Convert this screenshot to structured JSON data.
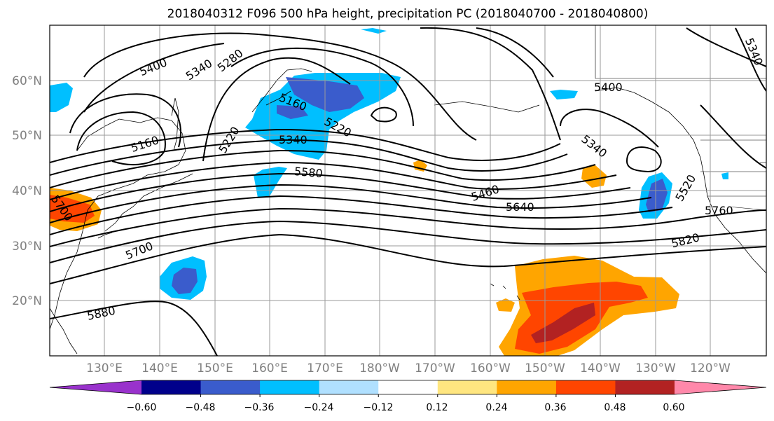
{
  "title": "2018040312 F096 500 hPa height, precipitation PC (2018040700 - 2018040800)",
  "map": {
    "lat_labels": [
      "60°N",
      "50°N",
      "40°N",
      "30°N",
      "20°N"
    ],
    "lon_labels": [
      "130°E",
      "140°E",
      "150°E",
      "160°E",
      "170°E",
      "180°W",
      "170°W",
      "160°W",
      "150°W",
      "140°W",
      "130°W",
      "120°W"
    ],
    "contour_labels": [
      "5400",
      "5340",
      "5280",
      "5160",
      "5220",
      "5160",
      "5220",
      "5340",
      "5580",
      "5460",
      "5340",
      "5640",
      "5700",
      "5880",
      "5820",
      "5760",
      "5400",
      "5340",
      "5520",
      "5700"
    ]
  },
  "colorbar": {
    "ticks": [
      "−0.60",
      "−0.48",
      "−0.36",
      "−0.24",
      "−0.12",
      "0.12",
      "0.24",
      "0.36",
      "0.48",
      "0.60"
    ],
    "colors": [
      "#9932cc",
      "#00008b",
      "#3a5ccc",
      "#00bfff",
      "#b0e0ff",
      "#ffffff",
      "#ffe680",
      "#ffa500",
      "#ff4500",
      "#b22222",
      "#ff88aa"
    ]
  }
}
